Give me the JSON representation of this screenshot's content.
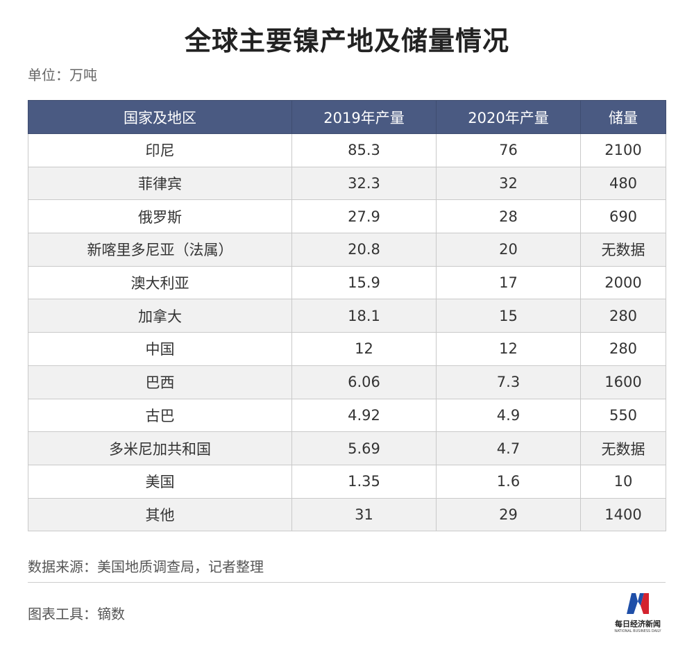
{
  "title": "全球主要镍产地及储量情况",
  "unit": "单位：万吨",
  "chart_data": {
    "type": "table",
    "columns": [
      "国家及地区",
      "2019年产量",
      "2020年产量",
      "储量"
    ],
    "rows": [
      [
        "印尼",
        "85.3",
        "76",
        "2100"
      ],
      [
        "菲律宾",
        "32.3",
        "32",
        "480"
      ],
      [
        "俄罗斯",
        "27.9",
        "28",
        "690"
      ],
      [
        "新喀里多尼亚（法属）",
        "20.8",
        "20",
        "无数据"
      ],
      [
        "澳大利亚",
        "15.9",
        "17",
        "2000"
      ],
      [
        "加拿大",
        "18.1",
        "15",
        "280"
      ],
      [
        "中国",
        "12",
        "12",
        "280"
      ],
      [
        "巴西",
        "6.06",
        "7.3",
        "1600"
      ],
      [
        "古巴",
        "4.92",
        "4.9",
        "550"
      ],
      [
        "多米尼加共和国",
        "5.69",
        "4.7",
        "无数据"
      ],
      [
        "美国",
        "1.35",
        "1.6",
        "10"
      ],
      [
        "其他",
        "31",
        "29",
        "1400"
      ]
    ]
  },
  "footer": {
    "source": "数据来源：美国地质调查局，记者整理",
    "tool": "图表工具：镝数"
  },
  "logo": {
    "cn": "每日经济新闻",
    "en": "NATIONAL BUSINESS DAILY",
    "colors": {
      "blue": "#1f4fa8",
      "red": "#d4232f"
    }
  },
  "colors": {
    "header_bg": "#4a5a82",
    "row_alt": "#f1f1f1",
    "grid": "#c9c9c9"
  }
}
